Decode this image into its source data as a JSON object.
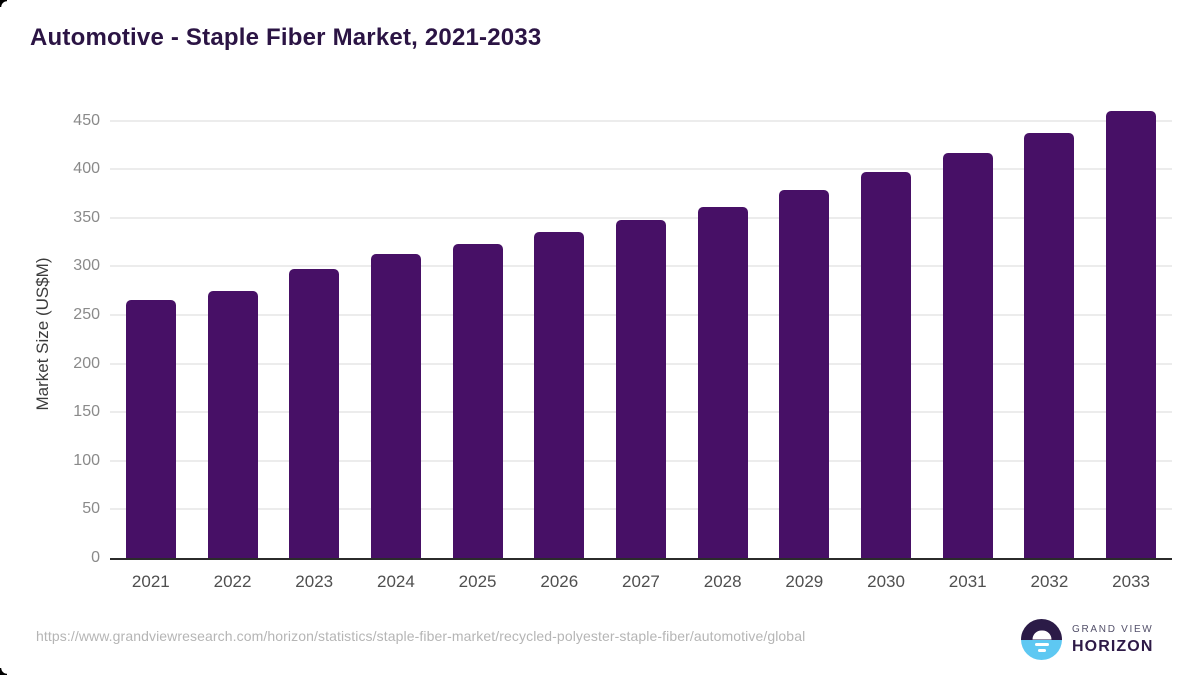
{
  "page": {
    "title": "Automotive - Staple Fiber Market, 2021-2033"
  },
  "chart_data": {
    "type": "bar",
    "title": "Automotive - Staple Fiber Market, 2021-2033",
    "categories": [
      "2021",
      "2022",
      "2023",
      "2024",
      "2025",
      "2026",
      "2027",
      "2028",
      "2029",
      "2030",
      "2031",
      "2032",
      "2033"
    ],
    "values": [
      265,
      275,
      297,
      313,
      323,
      335,
      348,
      361,
      379,
      397,
      417,
      437,
      460
    ],
    "xlabel": "",
    "ylabel": "Market Size (US$M)",
    "ylim": [
      0,
      462
    ],
    "y_ticks": [
      0,
      50,
      100,
      150,
      200,
      250,
      300,
      350,
      400,
      450
    ],
    "grid": true,
    "legend": "none",
    "bar_color": "#471066"
  },
  "footer": {
    "source_url": "https://www.grandviewresearch.com/horizon/statistics/staple-fiber-market/recycled-polyester-staple-fiber/automotive/global",
    "logo": {
      "line1": "GRAND VIEW",
      "line2": "HORIZON"
    }
  },
  "colors": {
    "title_text": "#2b1444",
    "bar": "#471066",
    "axis_line": "#2b2b2b",
    "gridline": "#ececec",
    "y_tick_label": "#8a8a8a",
    "x_tick_label": "#4f4f4f",
    "axis_title": "#3c3c3c",
    "url_text": "#b5b5b5",
    "logo_navy": "#2b1b47",
    "logo_blue": "#5ec8f2"
  }
}
